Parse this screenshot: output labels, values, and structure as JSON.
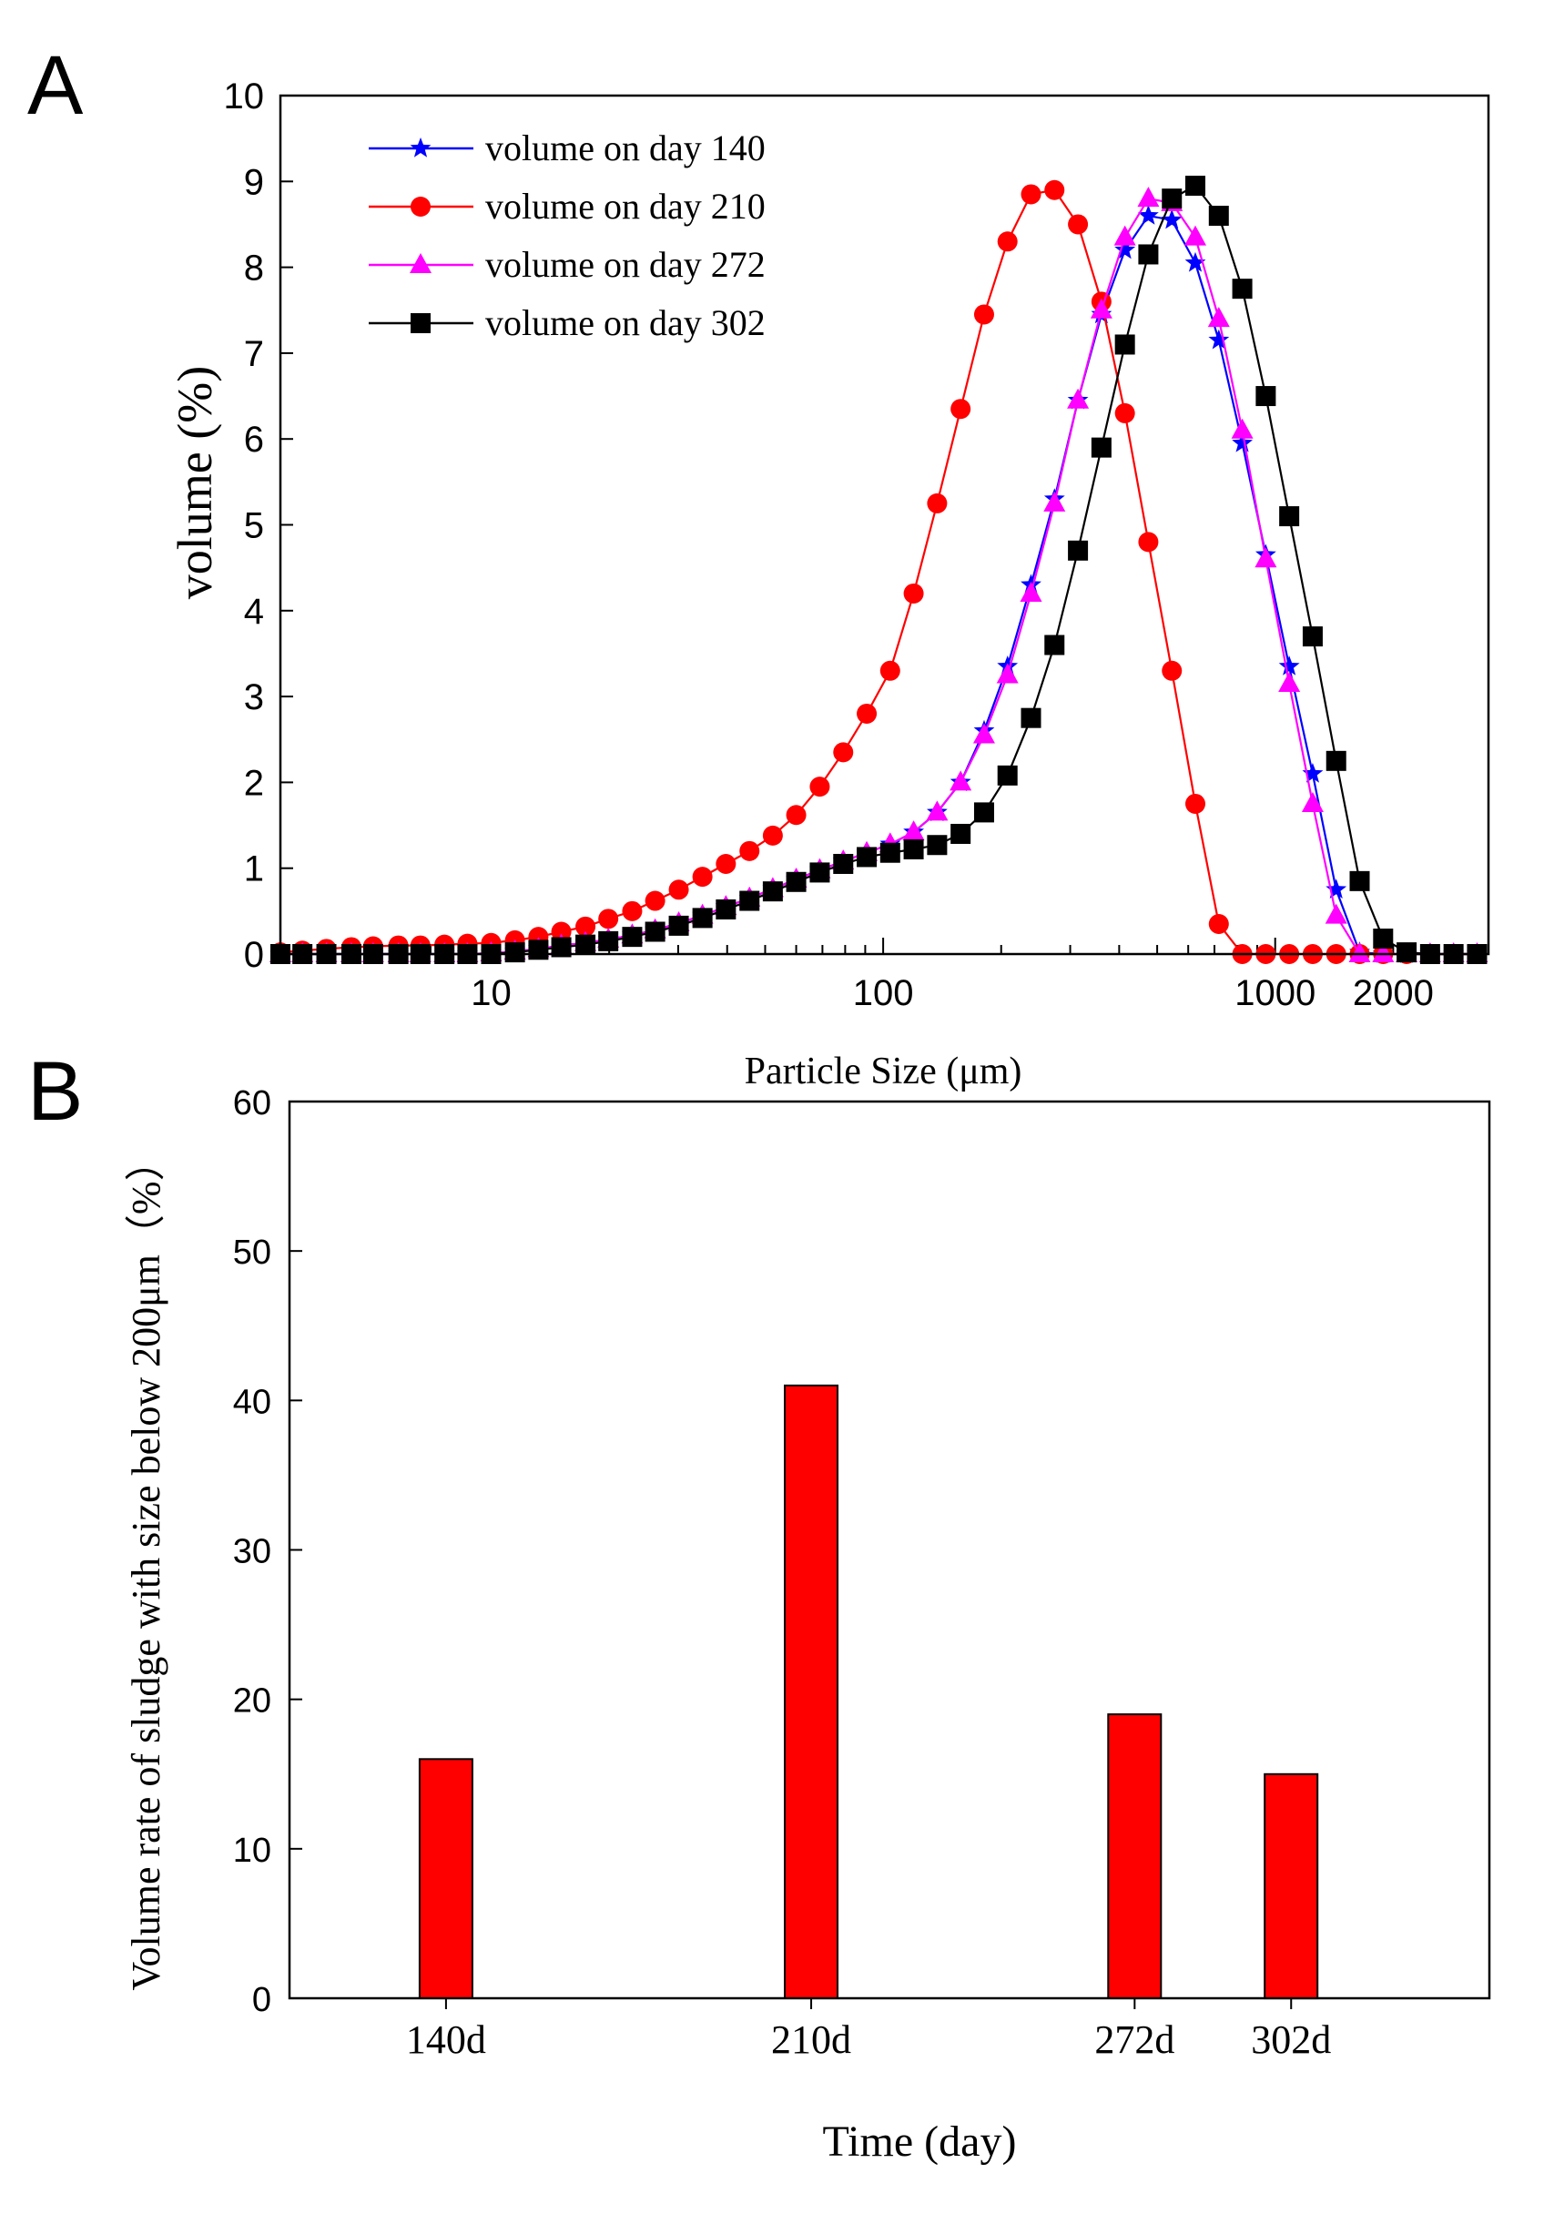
{
  "panels": {
    "a": {
      "letter": "A"
    },
    "b": {
      "letter": "B"
    }
  },
  "chart_data": [
    {
      "id": "A",
      "type": "line",
      "title": "",
      "xlabel": "Particle Size (μm)",
      "ylabel": "volume (%)",
      "xscale": "log",
      "xlim": [
        2.9,
        3500
      ],
      "ylim": [
        0,
        10
      ],
      "yticks": [
        0,
        1,
        2,
        3,
        4,
        5,
        6,
        7,
        8,
        9,
        10
      ],
      "xticks": [
        {
          "value": 10,
          "label": "10"
        },
        {
          "value": 100,
          "label": "100"
        },
        {
          "value": 1000,
          "label": "1000"
        },
        {
          "value": 2000,
          "label": "2000"
        }
      ],
      "legend_position": "top-left",
      "x": [
        2.9,
        3.3,
        3.8,
        4.4,
        5.0,
        5.8,
        6.6,
        7.6,
        8.7,
        10.0,
        11.5,
        13.2,
        15.1,
        17.4,
        19.9,
        22.9,
        26.2,
        30.1,
        34.6,
        39.7,
        45.6,
        52.3,
        60.0,
        68.9,
        79.1,
        90.8,
        104.2,
        119.6,
        137.3,
        157.6,
        180.9,
        207.6,
        238.3,
        273.5,
        314.0,
        360.4,
        413.7,
        474.8,
        545.1,
        625.6,
        718.1,
        824.3,
        946.2,
        1086.0,
        1246.6,
        1430.9,
        1642.4,
        1885.3,
        2164.0,
        2484.0,
        2851.0,
        3273.0
      ],
      "series": [
        {
          "name": "volume on day 140",
          "color": "#0000ff",
          "marker": "star",
          "values": [
            0,
            0,
            0,
            0,
            0,
            0,
            0,
            0,
            0,
            0.01,
            0.03,
            0.06,
            0.1,
            0.13,
            0.17,
            0.22,
            0.28,
            0.36,
            0.45,
            0.55,
            0.65,
            0.76,
            0.87,
            0.98,
            1.08,
            1.18,
            1.28,
            1.42,
            1.65,
            2.0,
            2.6,
            3.35,
            4.3,
            5.3,
            6.45,
            7.45,
            8.2,
            8.6,
            8.55,
            8.05,
            7.15,
            5.95,
            4.65,
            3.35,
            2.1,
            0.75,
            0.02,
            0,
            0,
            0,
            0,
            0
          ]
        },
        {
          "name": "volume on day 210",
          "color": "#ff0000",
          "marker": "circle",
          "values": [
            0.02,
            0.04,
            0.06,
            0.08,
            0.09,
            0.1,
            0.1,
            0.11,
            0.12,
            0.13,
            0.16,
            0.2,
            0.26,
            0.32,
            0.41,
            0.5,
            0.62,
            0.75,
            0.9,
            1.05,
            1.2,
            1.38,
            1.62,
            1.95,
            2.35,
            2.8,
            3.3,
            4.2,
            5.25,
            6.35,
            7.45,
            8.3,
            8.85,
            8.9,
            8.5,
            7.6,
            6.3,
            4.8,
            3.3,
            1.75,
            0.35,
            0,
            0,
            0,
            0,
            0,
            0,
            0,
            0,
            0,
            0,
            0
          ]
        },
        {
          "name": "volume on day 272",
          "color": "#ff00ff",
          "marker": "triangle",
          "values": [
            0,
            0,
            0,
            0,
            0,
            0,
            0,
            0,
            0,
            0.01,
            0.03,
            0.06,
            0.1,
            0.13,
            0.17,
            0.22,
            0.28,
            0.36,
            0.45,
            0.55,
            0.65,
            0.76,
            0.87,
            0.98,
            1.08,
            1.18,
            1.28,
            1.42,
            1.65,
            2.0,
            2.55,
            3.25,
            4.2,
            5.25,
            6.45,
            7.5,
            8.35,
            8.8,
            8.75,
            8.35,
            7.4,
            6.1,
            4.6,
            3.15,
            1.75,
            0.45,
            0,
            0,
            0,
            0,
            0,
            0
          ]
        },
        {
          "name": "volume on day 302",
          "color": "#000000",
          "marker": "square",
          "values": [
            0,
            0,
            0,
            0,
            0,
            0,
            0,
            0,
            0,
            0,
            0.02,
            0.05,
            0.08,
            0.11,
            0.15,
            0.2,
            0.26,
            0.33,
            0.42,
            0.52,
            0.62,
            0.73,
            0.84,
            0.95,
            1.05,
            1.13,
            1.18,
            1.22,
            1.27,
            1.4,
            1.65,
            2.08,
            2.75,
            3.6,
            4.7,
            5.9,
            7.1,
            8.15,
            8.8,
            8.95,
            8.6,
            7.75,
            6.5,
            5.1,
            3.7,
            2.25,
            0.85,
            0.18,
            0.02,
            0,
            0,
            0
          ]
        }
      ]
    },
    {
      "id": "B",
      "type": "bar",
      "title": "",
      "xlabel": "Time (day)",
      "ylabel": "Volume rate of sludge with size below 200μm（%）",
      "ylim": [
        0,
        60
      ],
      "yticks": [
        0,
        10,
        20,
        30,
        40,
        50,
        60
      ],
      "categories": [
        "140d",
        "210d",
        "272d",
        "302d"
      ],
      "positions": [
        140,
        210,
        272,
        302
      ],
      "xlim": [
        110,
        340
      ],
      "values": [
        16,
        41,
        19,
        15
      ],
      "bar_color": "#ff0000"
    }
  ]
}
